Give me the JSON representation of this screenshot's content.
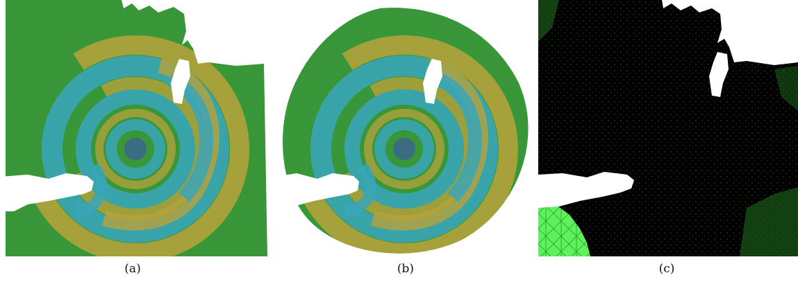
{
  "figure": {
    "panels": [
      {
        "caption": "(a)",
        "depicts": "mesh-field"
      },
      {
        "caption": "(b)",
        "depicts": "mesh-field-circular-domain"
      },
      {
        "caption": "(c)",
        "depicts": "mesh-density"
      }
    ],
    "colors": {
      "mesh_green": "#3a9a3a",
      "wave_yellow": "#b8a23c",
      "wave_cyan": "#3aa6b8",
      "wave_blue": "#3a5aa0",
      "source_red": "#b03a2a",
      "density_black": "#000000",
      "bright_green": "#5cf25c"
    }
  }
}
